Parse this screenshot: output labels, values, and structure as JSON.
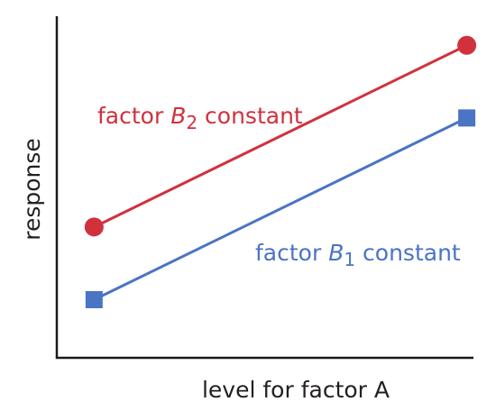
{
  "chart_data": {
    "type": "line",
    "xlabel": "level for factor A",
    "ylabel": "response",
    "x": [
      1,
      2
    ],
    "xlim": [
      0.9,
      2.03
    ],
    "ylim": [
      0.5,
      5.2
    ],
    "grid": false,
    "series": [
      {
        "name_parts": [
          "factor ",
          "B",
          "2",
          " constant"
        ],
        "values": [
          2.3,
          4.8
        ],
        "color": "#d1313d",
        "marker": "circle"
      },
      {
        "name_parts": [
          "factor ",
          "B",
          "1",
          " constant"
        ],
        "values": [
          1.3,
          3.8
        ],
        "color": "#4a74c4",
        "marker": "square"
      }
    ]
  }
}
